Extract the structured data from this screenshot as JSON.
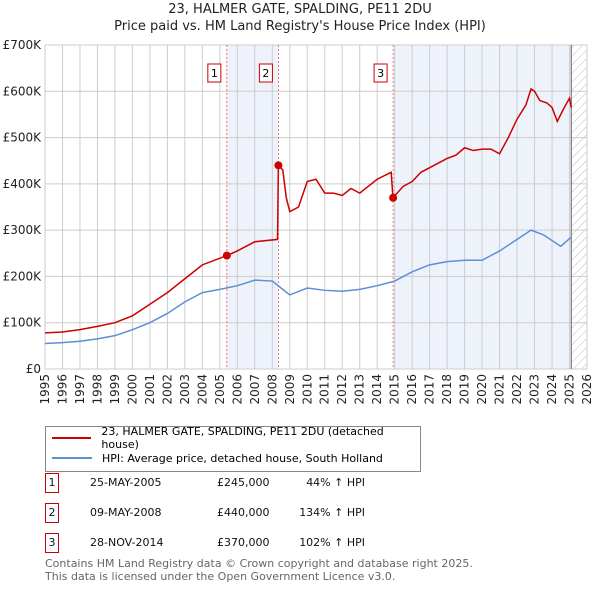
{
  "chart_data": {
    "type": "line",
    "title": "23, HALMER GATE, SPALDING, PE11 2DU",
    "subtitle": "Price paid vs. HM Land Registry's House Price Index (HPI)",
    "xlim": [
      1995,
      2026
    ],
    "ylim": [
      0,
      700000
    ],
    "yticks": [
      0,
      100000,
      200000,
      300000,
      400000,
      500000,
      600000,
      700000
    ],
    "ytick_labels": [
      "£0",
      "£100K",
      "£200K",
      "£300K",
      "£400K",
      "£500K",
      "£600K",
      "£700K"
    ],
    "xticks": [
      1995,
      1996,
      1997,
      1998,
      1999,
      2000,
      2001,
      2002,
      2003,
      2004,
      2005,
      2006,
      2007,
      2008,
      2009,
      2010,
      2011,
      2012,
      2013,
      2014,
      2015,
      2016,
      2017,
      2018,
      2019,
      2020,
      2021,
      2022,
      2023,
      2024,
      2025,
      2026
    ],
    "grid": true,
    "series": [
      {
        "name": "23, HALMER GATE, SPALDING, PE11 2DU (detached house)",
        "color": "#cc0000",
        "x": [
          1995,
          1996,
          1997,
          1998,
          1999,
          2000,
          2001,
          2002,
          2003,
          2004,
          2005.4,
          2006,
          2007,
          2008.3,
          2008.35,
          2008.6,
          2008.8,
          2009,
          2009.5,
          2010,
          2010.5,
          2011,
          2011.5,
          2012,
          2012.5,
          2013,
          2013.5,
          2014,
          2014.8,
          2014.9,
          2015.5,
          2016,
          2016.5,
          2017,
          2018,
          2018.5,
          2019,
          2019.5,
          2020,
          2020.5,
          2021,
          2021.5,
          2022,
          2022.5,
          2022.8,
          2023,
          2023.3,
          2023.7,
          2024,
          2024.3,
          2024.7,
          2025,
          2025.1
        ],
        "y": [
          78000,
          80000,
          85000,
          92000,
          100000,
          115000,
          140000,
          165000,
          195000,
          225000,
          245000,
          255000,
          275000,
          280000,
          440000,
          430000,
          370000,
          340000,
          350000,
          405000,
          410000,
          380000,
          380000,
          375000,
          390000,
          380000,
          395000,
          410000,
          425000,
          370000,
          395000,
          405000,
          425000,
          435000,
          455000,
          462000,
          478000,
          472000,
          475000,
          475000,
          465000,
          500000,
          540000,
          570000,
          605000,
          600000,
          580000,
          575000,
          565000,
          535000,
          565000,
          585000,
          565000
        ]
      },
      {
        "name": "HPI: Average price, detached house, South Holland",
        "color": "#5b8fd6",
        "x": [
          1995,
          1996,
          1997,
          1998,
          1999,
          2000,
          2001,
          2002,
          2003,
          2004,
          2005,
          2006,
          2007,
          2008,
          2008.5,
          2009,
          2010,
          2011,
          2012,
          2013,
          2014,
          2015,
          2016,
          2017,
          2018,
          2019,
          2020,
          2021,
          2022,
          2022.8,
          2023.5,
          2024.5,
          2025.1
        ],
        "y": [
          55000,
          57000,
          60000,
          65000,
          72000,
          85000,
          100000,
          120000,
          145000,
          165000,
          172000,
          180000,
          192000,
          190000,
          175000,
          160000,
          175000,
          170000,
          168000,
          172000,
          180000,
          190000,
          210000,
          225000,
          232000,
          235000,
          235000,
          255000,
          280000,
          300000,
          290000,
          265000,
          285000
        ]
      }
    ],
    "sales": [
      {
        "id": "1",
        "x": 2005.4,
        "y": 245000,
        "date": "25-MAY-2005",
        "price": "£245,000",
        "hpi": "44% ↑ HPI"
      },
      {
        "id": "2",
        "x": 2008.35,
        "y": 440000,
        "date": "09-MAY-2008",
        "price": "£440,000",
        "hpi": "134% ↑ HPI"
      },
      {
        "id": "3",
        "x": 2014.91,
        "y": 370000,
        "date": "28-NOV-2014",
        "price": "£370,000",
        "hpi": "102% ↑ HPI"
      }
    ],
    "shaded": [
      [
        2005.4,
        2008.35
      ],
      [
        2014.91,
        2025.1
      ]
    ],
    "future_hatch_from": 2025.1
  },
  "footer": [
    "Contains HM Land Registry data © Crown copyright and database right 2025.",
    "This data is licensed under the Open Government Licence v3.0."
  ]
}
